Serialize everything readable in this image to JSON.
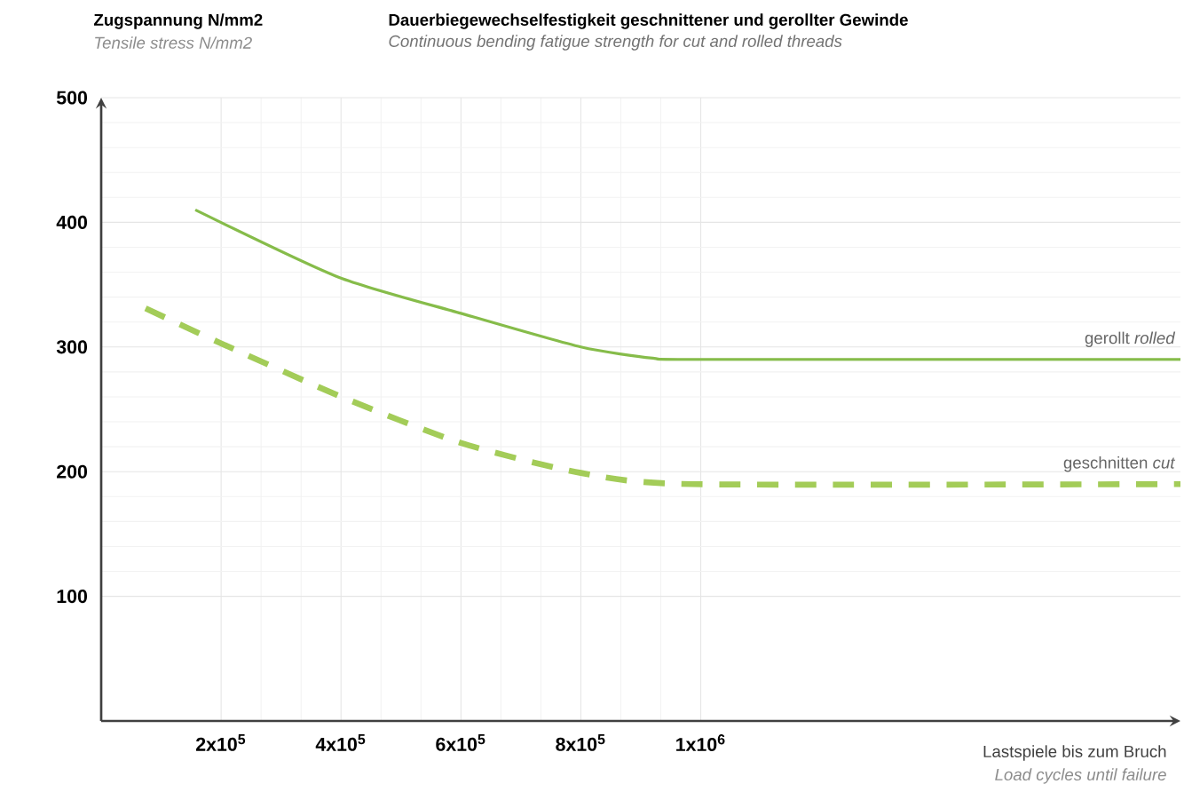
{
  "chart_data": {
    "type": "line",
    "title": "Dauerbiegewechselfestigkeit geschnittener und gerollter Gewinde",
    "subtitle": "Continuous bending fatigue strength for cut and rolled threads",
    "ylabel": "Zugspannung N/mm2",
    "xlabel": "Lastspiele bis zum Bruch",
    "annotations": [
      "Tensile stress N/mm2",
      "Load cycles until failure"
    ],
    "xlim": [
      0,
      1800000
    ],
    "ylim": [
      0,
      500
    ],
    "xticks": [
      {
        "value": 200000,
        "label": "2x10$^{5}$"
      },
      {
        "value": 400000,
        "label": "4x10$^{5}$"
      },
      {
        "value": 600000,
        "label": "6x10$^{5}$"
      },
      {
        "value": 800000,
        "label": "8x10$^{5}$"
      },
      {
        "value": 1000000,
        "label": "1x10$^{6}$"
      }
    ],
    "yticks": [
      100,
      200,
      300,
      400,
      500
    ],
    "grid": true,
    "series": [
      {
        "name": "gerollt *rolled*",
        "color": "#86bc4a",
        "line_style": "solid",
        "x": [
          157000,
          396000,
          600000,
          800000,
          920000,
          1000000,
          1800000
        ],
        "values": [
          410,
          356,
          327,
          300,
          291,
          290,
          290
        ]
      },
      {
        "name": "geschnitten *cut*",
        "color": "#a3cc58",
        "line_style": "dashed",
        "x": [
          74000,
          195000,
          396000,
          600000,
          800000,
          985000,
          1800000
        ],
        "values": [
          331,
          304,
          261,
          223,
          199,
          190,
          190
        ]
      }
    ]
  }
}
